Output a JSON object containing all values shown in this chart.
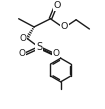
{
  "bg_color": "#ffffff",
  "line_color": "#1a1a1a",
  "line_width": 1.0,
  "figsize": [
    1.05,
    1.09
  ],
  "dpi": 100,
  "xlim": [
    0,
    10
  ],
  "ylim": [
    0,
    10.5
  ]
}
